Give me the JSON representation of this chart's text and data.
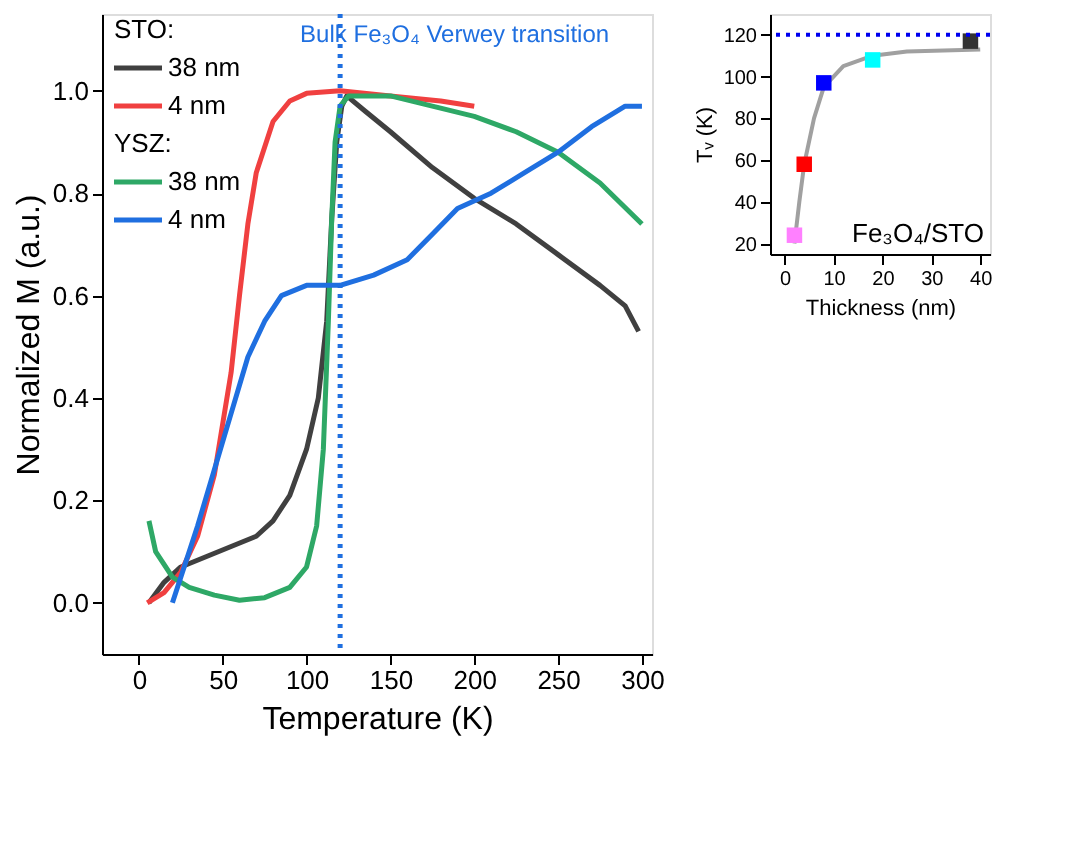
{
  "chart_data": [
    {
      "type": "line",
      "xlabel": "Temperature (K)",
      "ylabel": "Normalized M (a.u.)",
      "xlim": [
        -22,
        306
      ],
      "xticks": [
        0,
        50,
        100,
        150,
        200,
        250,
        300
      ],
      "ylim": [
        -0.1,
        1.15
      ],
      "yticks": [
        {
          "value": 0,
          "label": "0.0"
        },
        0.2,
        0.4,
        0.6,
        0.8,
        {
          "value": 1,
          "label": "1.0"
        }
      ],
      "grid": false,
      "legend": "top left",
      "marker": "none",
      "line_style": "solid",
      "annotations": [
        "STO:",
        "YSZ:"
      ],
      "ref_lines": [
        {
          "axis": "x",
          "value": 120,
          "label": "Bulk Fe₃O₄ Verwey transition",
          "color": "#1f6fe0",
          "line_style": "dotted"
        }
      ],
      "series": [
        {
          "name": "38 nm",
          "color": "#404040",
          "x": [
            6,
            15,
            25,
            40,
            55,
            70,
            80,
            90,
            100,
            107,
            112,
            115,
            118,
            121,
            124,
            135,
            150,
            175,
            200,
            225,
            250,
            275,
            290,
            298
          ],
          "values": [
            0.0,
            0.04,
            0.07,
            0.09,
            0.11,
            0.13,
            0.16,
            0.21,
            0.3,
            0.4,
            0.55,
            0.75,
            0.9,
            0.97,
            0.99,
            0.96,
            0.92,
            0.85,
            0.79,
            0.74,
            0.68,
            0.62,
            0.58,
            0.53
          ]
        },
        {
          "name": "4 nm",
          "color": "#f04040",
          "x": [
            5,
            15,
            25,
            35,
            45,
            55,
            60,
            65,
            70,
            80,
            90,
            100,
            120,
            150,
            180,
            200
          ],
          "values": [
            0.0,
            0.02,
            0.06,
            0.13,
            0.25,
            0.45,
            0.6,
            0.74,
            0.84,
            0.94,
            0.98,
            0.995,
            1.0,
            0.99,
            0.98,
            0.97
          ]
        },
        {
          "name": "38 nm",
          "color": "#2ea866",
          "x": [
            6,
            10,
            20,
            30,
            45,
            60,
            75,
            90,
            100,
            106,
            110,
            113,
            115,
            117,
            120,
            125,
            150,
            175,
            200,
            225,
            250,
            275,
            300
          ],
          "values": [
            0.16,
            0.1,
            0.05,
            0.03,
            0.015,
            0.005,
            0.01,
            0.03,
            0.07,
            0.15,
            0.3,
            0.55,
            0.75,
            0.9,
            0.97,
            0.99,
            0.99,
            0.97,
            0.95,
            0.92,
            0.88,
            0.82,
            0.74
          ]
        },
        {
          "name": "4 nm",
          "color": "#1f6fe0",
          "x": [
            20,
            25,
            35,
            45,
            55,
            65,
            75,
            85,
            100,
            120,
            140,
            160,
            175,
            190,
            210,
            230,
            250,
            270,
            290,
            300
          ],
          "values": [
            0.0,
            0.05,
            0.15,
            0.26,
            0.37,
            0.48,
            0.55,
            0.6,
            0.62,
            0.62,
            0.64,
            0.67,
            0.72,
            0.77,
            0.8,
            0.84,
            0.88,
            0.93,
            0.97,
            0.97
          ]
        }
      ]
    },
    {
      "type": "scatter",
      "xlabel": "Thickness (nm)",
      "ylabel": "Tᵥ (K)",
      "xlim": [
        -3,
        42
      ],
      "xticks": [
        0,
        10,
        20,
        30,
        40
      ],
      "ylim": [
        15,
        130
      ],
      "yticks": [
        20,
        40,
        60,
        80,
        100,
        120
      ],
      "grid": false,
      "annotations": [
        "Fe₃O₄/STO"
      ],
      "ref_lines": [
        {
          "axis": "y",
          "value": 120,
          "color": "#0000ee",
          "line_style": "dotted"
        }
      ],
      "series": [
        {
          "type": "line",
          "color": "#a0a0a0",
          "x": [
            2,
            3,
            4,
            6,
            8,
            12,
            18,
            25,
            40
          ],
          "values": [
            20,
            40,
            58,
            80,
            95,
            105,
            110,
            112,
            113
          ]
        },
        {
          "type": "scatter",
          "marker": "square",
          "colors": [
            "#ff80ff",
            "#ff0000",
            "#0000ff",
            "#00ffff",
            "#333333"
          ],
          "x": [
            2,
            4,
            8,
            18,
            38
          ],
          "values": [
            24,
            58,
            97,
            108,
            117
          ]
        }
      ]
    }
  ]
}
